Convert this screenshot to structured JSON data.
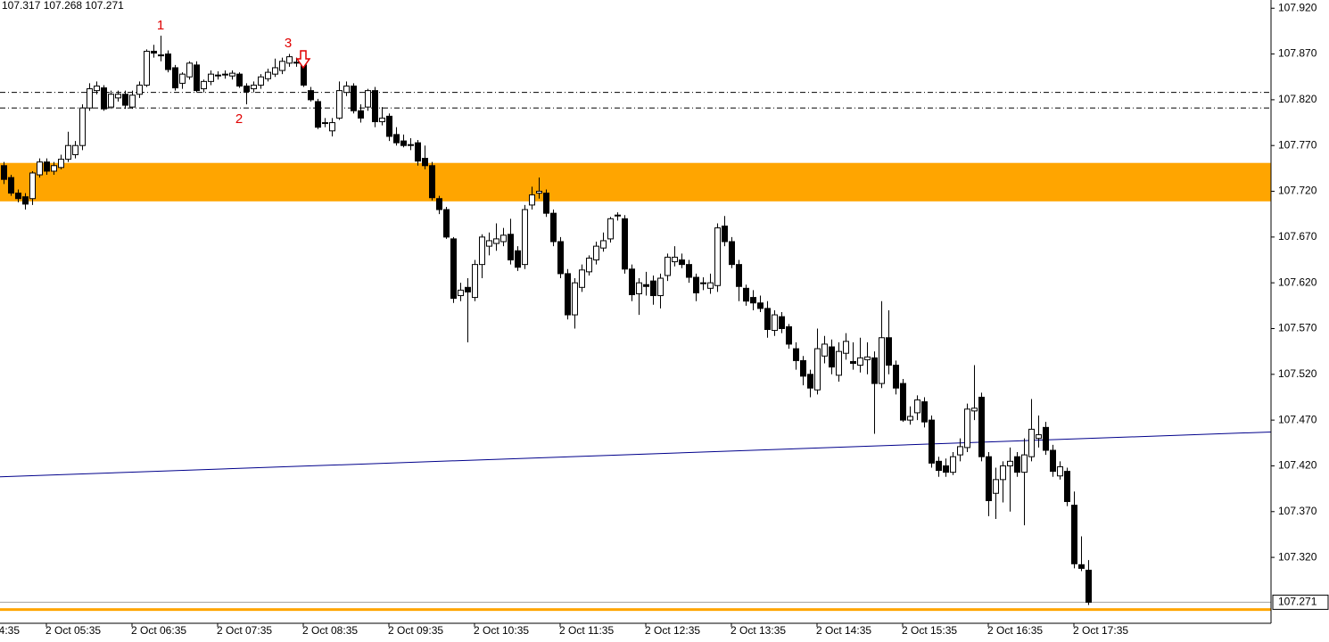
{
  "chart_data": {
    "type": "candlestick",
    "header": "107.317 107.268 107.271",
    "up_color": "#ffffff",
    "down_color": "#000000",
    "wick_color": "#000000",
    "ylim": [
      107.248,
      107.929
    ],
    "yticks": [
      {
        "value": 107.92,
        "label": "107.920"
      },
      {
        "value": 107.87,
        "label": "107.870"
      },
      {
        "value": 107.82,
        "label": "107.820"
      },
      {
        "value": 107.77,
        "label": "107.770"
      },
      {
        "value": 107.72,
        "label": "107.720"
      },
      {
        "value": 107.67,
        "label": "107.670"
      },
      {
        "value": 107.62,
        "label": "107.620"
      },
      {
        "value": 107.57,
        "label": "107.570"
      },
      {
        "value": 107.52,
        "label": "107.520"
      },
      {
        "value": 107.47,
        "label": "107.470"
      },
      {
        "value": 107.42,
        "label": "107.420"
      },
      {
        "value": 107.37,
        "label": "107.370"
      },
      {
        "value": 107.32,
        "label": "107.320"
      }
    ],
    "x_clipped_label": "4:35",
    "categories": [
      null,
      null,
      null,
      null,
      null,
      null,
      "2 Oct 05:35",
      null,
      null,
      null,
      null,
      null,
      null,
      null,
      null,
      null,
      null,
      null,
      "2 Oct 06:35",
      null,
      null,
      null,
      null,
      null,
      null,
      null,
      null,
      null,
      null,
      null,
      "2 Oct 07:35",
      null,
      null,
      null,
      null,
      null,
      null,
      null,
      null,
      null,
      null,
      null,
      "2 Oct 08:35",
      null,
      null,
      null,
      null,
      null,
      null,
      null,
      null,
      null,
      null,
      null,
      "2 Oct 09:35",
      null,
      null,
      null,
      null,
      null,
      null,
      null,
      null,
      null,
      null,
      null,
      "2 Oct 10:35",
      null,
      null,
      null,
      null,
      null,
      null,
      null,
      null,
      null,
      null,
      null,
      "2 Oct 11:35",
      null,
      null,
      null,
      null,
      null,
      null,
      null,
      null,
      null,
      null,
      null,
      "2 Oct 12:35",
      null,
      null,
      null,
      null,
      null,
      null,
      null,
      null,
      null,
      null,
      null,
      "2 Oct 13:35",
      null,
      null,
      null,
      null,
      null,
      null,
      null,
      null,
      null,
      null,
      null,
      "2 Oct 14:35",
      null,
      null,
      null,
      null,
      null,
      null,
      null,
      null,
      null,
      null,
      null,
      "2 Oct 15:35",
      null,
      null,
      null,
      null,
      null,
      null,
      null,
      null,
      null,
      null,
      null,
      "2 Oct 16:35",
      null,
      null,
      null,
      null,
      null,
      null,
      null,
      null,
      null,
      null,
      null,
      "2 Oct 17:35",
      null,
      null
    ],
    "candles": [
      [
        107.748,
        107.752,
        107.728,
        107.733
      ],
      [
        107.735,
        107.738,
        107.715,
        107.718
      ],
      [
        107.718,
        107.722,
        107.708,
        107.712
      ],
      [
        107.714,
        107.718,
        107.7,
        107.706
      ],
      [
        107.712,
        107.742,
        107.705,
        107.74
      ],
      [
        107.738,
        107.756,
        107.735,
        107.752
      ],
      [
        107.752,
        107.756,
        107.738,
        107.742
      ],
      [
        107.742,
        107.752,
        107.738,
        107.748
      ],
      [
        107.746,
        107.76,
        107.744,
        107.755
      ],
      [
        107.755,
        107.785,
        107.752,
        107.77
      ],
      [
        107.76,
        107.775,
        107.756,
        107.77
      ],
      [
        107.77,
        107.815,
        107.765,
        107.811
      ],
      [
        107.811,
        107.838,
        107.808,
        107.832
      ],
      [
        107.83,
        107.84,
        107.826,
        107.835
      ],
      [
        107.833,
        107.836,
        107.808,
        107.81
      ],
      [
        107.812,
        107.83,
        107.81,
        107.826
      ],
      [
        107.822,
        107.83,
        107.818,
        107.826
      ],
      [
        107.826,
        107.83,
        107.81,
        107.814
      ],
      [
        107.812,
        107.83,
        107.81,
        107.825
      ],
      [
        107.826,
        107.84,
        107.822,
        107.836
      ],
      [
        107.836,
        107.875,
        107.834,
        107.873
      ],
      [
        107.873,
        107.88,
        107.866,
        107.871
      ],
      [
        107.868,
        107.89,
        107.862,
        107.869
      ],
      [
        107.87,
        107.874,
        107.85,
        107.853
      ],
      [
        107.855,
        107.858,
        107.83,
        107.833
      ],
      [
        107.838,
        107.85,
        107.832,
        107.848
      ],
      [
        107.845,
        107.862,
        107.842,
        107.86
      ],
      [
        107.858,
        107.862,
        107.828,
        107.83
      ],
      [
        107.832,
        107.842,
        107.828,
        107.84
      ],
      [
        107.84,
        107.852,
        107.836,
        107.848
      ],
      [
        107.847,
        107.851,
        107.842,
        107.847
      ],
      [
        107.848,
        107.852,
        107.843,
        107.848
      ],
      [
        107.846,
        107.852,
        107.842,
        107.849
      ],
      [
        107.848,
        107.85,
        107.833,
        107.835
      ],
      [
        107.835,
        107.838,
        107.815,
        107.829
      ],
      [
        107.832,
        107.84,
        107.828,
        107.836
      ],
      [
        107.836,
        107.848,
        107.832,
        107.845
      ],
      [
        107.843,
        107.854,
        107.84,
        107.85
      ],
      [
        107.848,
        107.865,
        107.845,
        107.855
      ],
      [
        107.852,
        107.866,
        107.848,
        107.862
      ],
      [
        107.86,
        107.87,
        107.856,
        107.867
      ],
      [
        107.861,
        107.866,
        107.856,
        107.861
      ],
      [
        107.858,
        107.86,
        107.834,
        107.836
      ],
      [
        107.83,
        107.834,
        107.818,
        107.82
      ],
      [
        107.818,
        107.821,
        107.788,
        107.79
      ],
      [
        107.795,
        107.8,
        107.79,
        107.795
      ],
      [
        107.786,
        107.8,
        107.78,
        107.795
      ],
      [
        107.8,
        107.84,
        107.798,
        107.83
      ],
      [
        107.828,
        107.84,
        107.824,
        107.835
      ],
      [
        107.835,
        107.838,
        107.805,
        107.808
      ],
      [
        107.808,
        107.815,
        107.795,
        107.8
      ],
      [
        107.812,
        107.832,
        107.808,
        107.83
      ],
      [
        107.83,
        107.834,
        107.79,
        107.796
      ],
      [
        107.796,
        107.812,
        107.792,
        107.8
      ],
      [
        107.802,
        107.805,
        107.775,
        107.78
      ],
      [
        107.782,
        107.79,
        107.77,
        107.773
      ],
      [
        107.775,
        107.782,
        107.768,
        107.77
      ],
      [
        107.771,
        107.778,
        107.765,
        107.771
      ],
      [
        107.773,
        107.776,
        107.748,
        107.753
      ],
      [
        107.756,
        107.77,
        107.744,
        107.748
      ],
      [
        107.748,
        107.752,
        107.71,
        107.713
      ],
      [
        107.712,
        107.715,
        107.695,
        107.7
      ],
      [
        107.7,
        107.703,
        107.668,
        107.67
      ],
      [
        107.668,
        107.67,
        107.598,
        107.603
      ],
      [
        107.606,
        107.62,
        107.6,
        107.612
      ],
      [
        107.615,
        107.625,
        107.555,
        107.61
      ],
      [
        107.604,
        107.645,
        107.6,
        107.64
      ],
      [
        107.64,
        107.673,
        107.625,
        107.67
      ],
      [
        107.66,
        107.675,
        107.65,
        107.666
      ],
      [
        107.663,
        107.685,
        107.655,
        107.668
      ],
      [
        107.665,
        107.68,
        107.66,
        107.672
      ],
      [
        107.673,
        107.69,
        107.64,
        107.645
      ],
      [
        107.655,
        107.66,
        107.633,
        107.637
      ],
      [
        107.64,
        107.705,
        107.635,
        107.7
      ],
      [
        107.705,
        107.725,
        107.7,
        107.716
      ],
      [
        107.718,
        107.735,
        107.712,
        107.72
      ],
      [
        107.718,
        107.722,
        107.692,
        107.696
      ],
      [
        107.696,
        107.7,
        107.66,
        107.665
      ],
      [
        107.665,
        107.67,
        107.625,
        107.63
      ],
      [
        107.63,
        107.635,
        107.58,
        107.585
      ],
      [
        107.585,
        107.625,
        107.57,
        107.62
      ],
      [
        107.615,
        107.64,
        107.61,
        107.634
      ],
      [
        107.632,
        107.65,
        107.628,
        107.647
      ],
      [
        107.645,
        107.665,
        107.64,
        107.66
      ],
      [
        107.658,
        107.675,
        107.654,
        107.666
      ],
      [
        107.668,
        107.692,
        107.664,
        107.69
      ],
      [
        107.693,
        107.697,
        107.688,
        107.694
      ],
      [
        107.69,
        107.694,
        107.63,
        107.635
      ],
      [
        107.635,
        107.64,
        107.6,
        107.607
      ],
      [
        107.608,
        107.625,
        107.585,
        107.62
      ],
      [
        107.618,
        107.632,
        107.606,
        107.616
      ],
      [
        107.622,
        107.628,
        107.596,
        107.606
      ],
      [
        107.606,
        107.63,
        107.592,
        107.625
      ],
      [
        107.628,
        107.652,
        107.622,
        107.648
      ],
      [
        107.643,
        107.66,
        107.638,
        107.648
      ],
      [
        107.645,
        107.652,
        107.636,
        107.64
      ],
      [
        107.64,
        107.645,
        107.62,
        107.626
      ],
      [
        107.626,
        107.63,
        107.6,
        107.609
      ],
      [
        107.62,
        107.626,
        107.612,
        107.62
      ],
      [
        107.614,
        107.63,
        107.608,
        107.62
      ],
      [
        107.617,
        107.685,
        107.61,
        107.68
      ],
      [
        107.682,
        107.693,
        107.66,
        107.665
      ],
      [
        107.665,
        107.67,
        107.636,
        107.64
      ],
      [
        107.64,
        107.645,
        107.6,
        107.616
      ],
      [
        107.614,
        107.618,
        107.595,
        107.6
      ],
      [
        107.604,
        107.612,
        107.59,
        107.598
      ],
      [
        107.598,
        107.606,
        107.588,
        107.592
      ],
      [
        107.592,
        107.6,
        107.56,
        107.569
      ],
      [
        107.568,
        107.59,
        107.562,
        107.585
      ],
      [
        107.583,
        107.588,
        107.565,
        107.57
      ],
      [
        107.572,
        107.575,
        107.548,
        107.553
      ],
      [
        107.548,
        107.555,
        107.525,
        107.535
      ],
      [
        107.535,
        107.54,
        107.508,
        107.518
      ],
      [
        107.52,
        107.525,
        107.495,
        107.505
      ],
      [
        107.503,
        107.57,
        107.498,
        107.548
      ],
      [
        107.54,
        107.562,
        107.532,
        107.553
      ],
      [
        107.55,
        107.558,
        107.52,
        107.528
      ],
      [
        107.519,
        107.555,
        107.512,
        107.545
      ],
      [
        107.543,
        107.565,
        107.536,
        107.556
      ],
      [
        107.534,
        107.555,
        107.525,
        107.532
      ],
      [
        107.53,
        107.56,
        107.522,
        107.538
      ],
      [
        107.536,
        107.555,
        107.52,
        107.539
      ],
      [
        107.538,
        107.545,
        107.455,
        107.51
      ],
      [
        107.51,
        107.6,
        107.505,
        107.56
      ],
      [
        107.56,
        107.59,
        107.52,
        107.53
      ],
      [
        107.53,
        107.535,
        107.498,
        107.505
      ],
      [
        107.51,
        107.515,
        107.468,
        107.47
      ],
      [
        107.47,
        107.485,
        107.465,
        107.474
      ],
      [
        107.478,
        107.497,
        107.47,
        107.492
      ],
      [
        107.49,
        107.495,
        107.462,
        107.468
      ],
      [
        107.47,
        107.475,
        107.418,
        107.423
      ],
      [
        107.425,
        107.43,
        107.408,
        107.415
      ],
      [
        107.42,
        107.428,
        107.408,
        107.413
      ],
      [
        107.413,
        107.435,
        107.41,
        107.43
      ],
      [
        107.432,
        107.45,
        107.425,
        107.441
      ],
      [
        107.44,
        107.488,
        107.435,
        107.482
      ],
      [
        107.48,
        107.53,
        107.47,
        107.483
      ],
      [
        107.495,
        107.5,
        107.425,
        107.43
      ],
      [
        107.43,
        107.435,
        107.365,
        107.382
      ],
      [
        107.39,
        107.418,
        107.362,
        107.405
      ],
      [
        107.405,
        107.425,
        107.38,
        107.42
      ],
      [
        107.42,
        107.44,
        107.37,
        107.425
      ],
      [
        107.43,
        107.435,
        107.408,
        107.413
      ],
      [
        107.413,
        107.45,
        107.355,
        107.432
      ],
      [
        107.43,
        107.493,
        107.425,
        107.46
      ],
      [
        107.45,
        107.475,
        107.44,
        107.454
      ],
      [
        107.462,
        107.468,
        107.432,
        107.437
      ],
      [
        107.437,
        107.443,
        107.408,
        107.414
      ],
      [
        107.409,
        107.425,
        107.405,
        107.419
      ],
      [
        107.414,
        107.418,
        107.376,
        107.381
      ],
      [
        107.377,
        107.392,
        107.308,
        107.313
      ],
      [
        107.312,
        107.343,
        107.305,
        107.308
      ],
      [
        107.306,
        107.317,
        107.268,
        107.271
      ]
    ],
    "zone": {
      "from": 107.709,
      "to": 107.751,
      "color": "#ffa500"
    },
    "levels": [
      {
        "value": 107.828,
        "style": "dashdot",
        "color": "#000000"
      },
      {
        "value": 107.811,
        "style": "dashdot",
        "color": "#000000"
      },
      {
        "value": 107.263,
        "style": "solid",
        "color": "#ffa500"
      }
    ],
    "trendline": {
      "values": [
        107.408,
        107.457
      ],
      "color": "#00008b"
    },
    "last_price": {
      "value": 107.271,
      "label": "107.271"
    },
    "annotations": [
      "1",
      "2",
      "3"
    ]
  }
}
